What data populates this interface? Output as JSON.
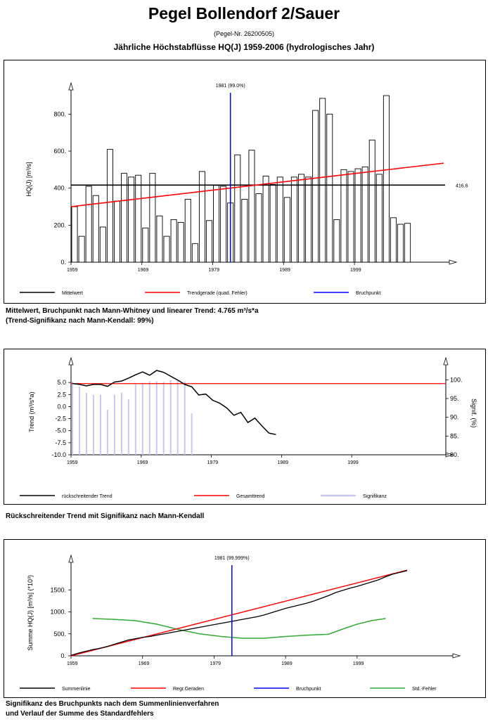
{
  "header": {
    "title": "Pegel  Bollendorf 2/Sauer",
    "subtitle": "(Pegel-Nr. 26200505)",
    "heading": "Jährliche Höchstabflüsse HQ(J) 1959-2006 (hydrologisches Jahr)"
  },
  "chart_data": [
    {
      "type": "bar",
      "ylabel": "HQ(J) [m³/s]",
      "xticks": [
        "1959",
        "1969",
        "1979",
        "1989",
        "1999"
      ],
      "yticks": [
        "0.",
        "200.",
        "400.",
        "600.",
        "800."
      ],
      "ylim": [
        0,
        900
      ],
      "x": [
        1959,
        1960,
        1961,
        1962,
        1963,
        1964,
        1965,
        1966,
        1967,
        1968,
        1969,
        1970,
        1971,
        1972,
        1973,
        1974,
        1975,
        1976,
        1977,
        1978,
        1979,
        1980,
        1981,
        1982,
        1983,
        1984,
        1985,
        1986,
        1987,
        1988,
        1989,
        1990,
        1991,
        1992,
        1993,
        1994,
        1995,
        1996,
        1997,
        1998,
        1999,
        2000,
        2001,
        2002,
        2003,
        2004,
        2005,
        2006
      ],
      "values": [
        300,
        140,
        410,
        360,
        190,
        610,
        330,
        480,
        460,
        470,
        185,
        480,
        250,
        140,
        230,
        215,
        340,
        100,
        490,
        225,
        415,
        410,
        320,
        580,
        340,
        605,
        370,
        465,
        420,
        460,
        350,
        460,
        475,
        460,
        820,
        885,
        800,
        230,
        500,
        490,
        505,
        515,
        660,
        475,
        900,
        240,
        205,
        210
      ],
      "mean": 416.6,
      "mean_label": "416.6",
      "trend_line": {
        "start": 300,
        "end": 535
      },
      "breakpoint": {
        "x": 1981,
        "label": "1981 (99.0%)"
      },
      "legend": [
        "Mittelwert",
        "Trendgerade (quad. Fehler)",
        "Bruchpunkt"
      ],
      "colors": {
        "bars": "#ffffff",
        "mean": "#000000",
        "trend": "#ff0000",
        "breakpoint": "#0000ff"
      }
    },
    {
      "type": "line",
      "ylabel": "Trend (m³/s*a)",
      "y2label": "Signif. (%)",
      "xticks": [
        "1959",
        "1969",
        "1979",
        "1989",
        "1999"
      ],
      "yticks": [
        "5.0",
        "2.5",
        "0.0",
        "-2.5",
        "-5.0",
        "-7.5",
        "-10.0"
      ],
      "ylim": [
        -10,
        7.5
      ],
      "y2ticks": [
        "100.",
        "95.",
        "90.",
        "85.",
        "80."
      ],
      "y2lim": [
        80,
        102.5
      ],
      "trend_x": [
        1959,
        1960,
        1961,
        1962,
        1963,
        1964,
        1965,
        1966,
        1967,
        1968,
        1969,
        1970,
        1971,
        1972,
        1973,
        1974,
        1975,
        1976,
        1977,
        1978,
        1979,
        1980,
        1981,
        1982,
        1983,
        1984,
        1985,
        1986,
        1987,
        1988
      ],
      "trend_values": [
        4.8,
        4.6,
        4.3,
        4.6,
        4.6,
        4.2,
        5.1,
        5.3,
        5.9,
        6.6,
        7.2,
        6.5,
        7.5,
        7.1,
        6.3,
        5.5,
        4.6,
        4.1,
        2.4,
        2.6,
        1.3,
        0.7,
        -0.3,
        -1.8,
        -1.2,
        -3.3,
        -2.4,
        -4.0,
        -5.5,
        -5.8
      ],
      "overall_trend": 4.765,
      "signif_x": [
        1959,
        1960,
        1961,
        1962,
        1963,
        1964,
        1965,
        1966,
        1967,
        1968,
        1969,
        1970,
        1971,
        1972,
        1973,
        1974,
        1975,
        1976
      ],
      "signif_values": [
        99.5,
        98.2,
        96.5,
        96.0,
        96.0,
        92.0,
        96.0,
        96.6,
        94.8,
        98.9,
        99.2,
        99.6,
        99.6,
        99.4,
        99.9,
        99.7,
        99.5,
        91.0
      ],
      "legend": [
        "rückschreitender Trend",
        "Gesamttrend",
        "Signifikanz"
      ],
      "colors": {
        "trend": "#000000",
        "overall": "#ff0000",
        "signif": "#c8c8f0"
      }
    },
    {
      "type": "line",
      "ylabel": "Summe HQ(J) [m³/s]  (*10³)",
      "xticks": [
        "1959",
        "1969",
        "1979",
        "1989",
        "1999"
      ],
      "yticks": [
        "0.",
        "500.",
        "1000.",
        "1500."
      ],
      "ylim": [
        0,
        2000
      ],
      "cumsum_x": [
        1959,
        1960,
        1961,
        1962,
        1963,
        1964,
        1965,
        1966,
        1967,
        1968,
        1969,
        1970,
        1971,
        1972,
        1973,
        1974,
        1975,
        1976,
        1977,
        1978,
        1979,
        1980,
        1981,
        1982,
        1983,
        1984,
        1985,
        1986,
        1987,
        1988,
        1989,
        1990,
        1991,
        1992,
        1993,
        1994,
        1995,
        1996,
        1997,
        1998,
        1999,
        2000,
        2001,
        2002,
        2003,
        2004,
        2005,
        2006
      ],
      "cumsum_values": [
        10,
        60,
        100,
        140,
        170,
        210,
        260,
        310,
        360,
        390,
        420,
        440,
        470,
        500,
        530,
        560,
        590,
        620,
        650,
        680,
        710,
        740,
        770,
        800,
        830,
        860,
        890,
        930,
        980,
        1030,
        1080,
        1120,
        1160,
        1200,
        1250,
        1310,
        1370,
        1440,
        1490,
        1540,
        1580,
        1630,
        1680,
        1730,
        1800,
        1860,
        1900,
        1940
      ],
      "regression": {
        "start": 0,
        "end": 1950
      },
      "std_error_x": [
        1962,
        1965,
        1968,
        1971,
        1974,
        1977,
        1980,
        1983,
        1986,
        1989,
        1992,
        1995,
        1997,
        1999,
        2001,
        2003
      ],
      "std_error_values": [
        850,
        830,
        800,
        720,
        600,
        500,
        440,
        400,
        400,
        440,
        470,
        490,
        610,
        720,
        800,
        850
      ],
      "breakpoint": {
        "x": 1981,
        "label": "1981 (99.999%)"
      },
      "legend": [
        "Summenlinie",
        "Regr.Geraden",
        "Bruchpunkt",
        "Std.-Fehler"
      ],
      "colors": {
        "cumsum": "#000000",
        "regression": "#ff0000",
        "breakpoint": "#0000ff",
        "std_error": "#33aa33"
      }
    }
  ],
  "captions": {
    "c1_line1": "Mittelwert, Bruchpunkt nach Mann-Whitney und linearer Trend:  4.765 m³/s*a",
    "c1_line2": "(Trend-Signifikanz nach Mann-Kendall:   99%)",
    "c2_line1": "Rückschreitender Trend mit Signifikanz nach Mann-Kendall",
    "c3_line1": "Signifikanz des Bruchpunkts nach dem Summenlinienverfahren",
    "c3_line2": "und Verlauf der Summe des Standardfehlers"
  }
}
